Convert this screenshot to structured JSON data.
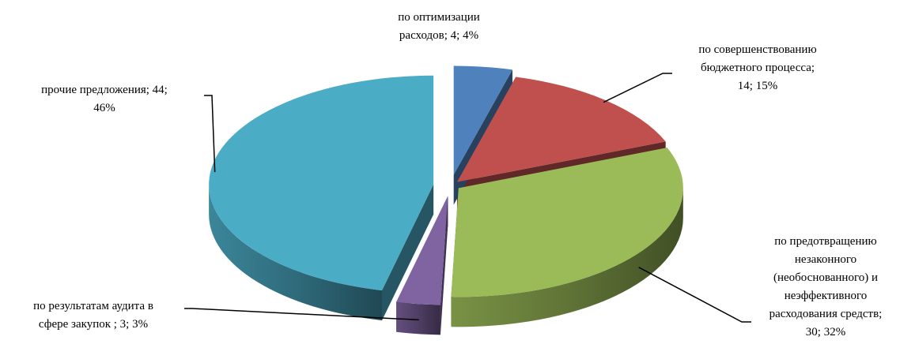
{
  "chart_data": {
    "type": "pie",
    "style": "3d-exploded",
    "slices": [
      {
        "label_lines": [
          "по оптимизации",
          "расходов; 4; 4%"
        ],
        "value": 4,
        "percent": 4,
        "color": "#4f81bd"
      },
      {
        "label_lines": [
          "по совершенствованию",
          "бюджетного процесса;",
          "14; 15%"
        ],
        "value": 14,
        "percent": 15,
        "color": "#c0504d"
      },
      {
        "label_lines": [
          "по предотвращению",
          "незаконного",
          "(необоснованного) и",
          "неэффективного",
          "расходования средств;",
          "30; 32%"
        ],
        "value": 30,
        "percent": 32,
        "color": "#9bbb59"
      },
      {
        "label_lines": [
          "по результатам аудита в",
          "сфере закупок ; 3; 3%"
        ],
        "value": 3,
        "percent": 3,
        "color": "#8064a2"
      },
      {
        "label_lines": [
          "прочие предложения; 44;",
          "46%"
        ],
        "value": 44,
        "percent": 46,
        "color": "#4bacc6"
      }
    ]
  }
}
